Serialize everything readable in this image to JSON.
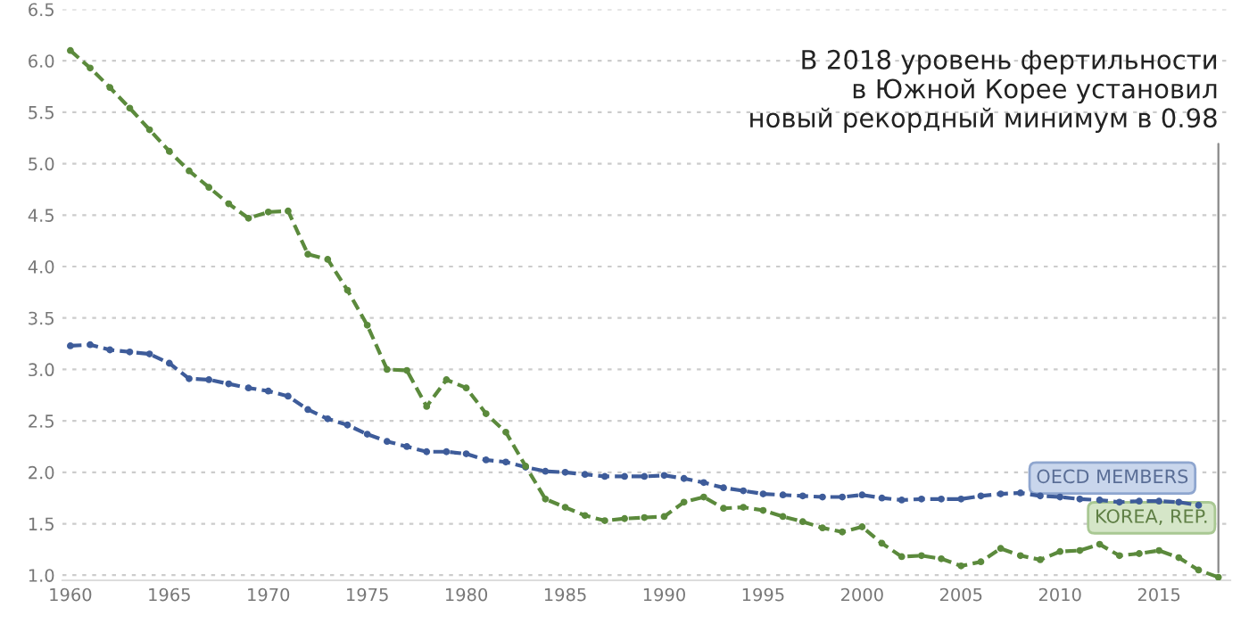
{
  "chart_data": {
    "type": "line",
    "x": [
      1960,
      1961,
      1962,
      1963,
      1964,
      1965,
      1966,
      1967,
      1968,
      1969,
      1970,
      1971,
      1972,
      1973,
      1974,
      1975,
      1976,
      1977,
      1978,
      1979,
      1980,
      1981,
      1982,
      1983,
      1984,
      1985,
      1986,
      1987,
      1988,
      1989,
      1990,
      1991,
      1992,
      1993,
      1994,
      1995,
      1996,
      1997,
      1998,
      1999,
      2000,
      2001,
      2002,
      2003,
      2004,
      2005,
      2006,
      2007,
      2008,
      2009,
      2010,
      2011,
      2012,
      2013,
      2014,
      2015,
      2016,
      2017,
      2018
    ],
    "series": [
      {
        "name": "OECD MEMBERS",
        "color": "#3e5c9a",
        "values": [
          3.23,
          3.24,
          3.19,
          3.17,
          3.15,
          3.06,
          2.91,
          2.9,
          2.86,
          2.82,
          2.79,
          2.74,
          2.61,
          2.52,
          2.46,
          2.37,
          2.3,
          2.25,
          2.2,
          2.2,
          2.18,
          2.12,
          2.1,
          2.05,
          2.01,
          2.0,
          1.98,
          1.96,
          1.96,
          1.96,
          1.97,
          1.94,
          1.9,
          1.85,
          1.82,
          1.79,
          1.78,
          1.77,
          1.76,
          1.76,
          1.78,
          1.75,
          1.73,
          1.74,
          1.74,
          1.74,
          1.77,
          1.79,
          1.8,
          1.77,
          1.76,
          1.74,
          1.73,
          1.71,
          1.72,
          1.72,
          1.71,
          1.68,
          null
        ]
      },
      {
        "name": "KOREA, REP.",
        "color": "#5b8a3c",
        "values": [
          6.1,
          5.93,
          5.74,
          5.54,
          5.33,
          5.12,
          4.93,
          4.77,
          4.61,
          4.47,
          4.53,
          4.54,
          4.12,
          4.07,
          3.77,
          3.43,
          3.0,
          2.99,
          2.64,
          2.9,
          2.82,
          2.57,
          2.39,
          2.06,
          1.74,
          1.66,
          1.58,
          1.53,
          1.55,
          1.56,
          1.57,
          1.71,
          1.76,
          1.65,
          1.66,
          1.63,
          1.57,
          1.52,
          1.46,
          1.42,
          1.47,
          1.31,
          1.18,
          1.19,
          1.16,
          1.09,
          1.13,
          1.26,
          1.19,
          1.15,
          1.23,
          1.24,
          1.3,
          1.19,
          1.21,
          1.24,
          1.17,
          1.05,
          0.98
        ]
      }
    ],
    "xlim": [
      1959.6,
      2018.6
    ],
    "xticks": [
      1960,
      1965,
      1970,
      1975,
      1980,
      1985,
      1990,
      1995,
      2000,
      2005,
      2010,
      2015
    ],
    "ylim": [
      0.95,
      6.5
    ],
    "yticks": [
      {
        "value": 1.0,
        "label": "1.0"
      },
      {
        "value": 1.5,
        "label": "1.5"
      },
      {
        "value": 2.0,
        "label": "2.0"
      },
      {
        "value": 2.5,
        "label": "2.5"
      },
      {
        "value": 3.0,
        "label": "3.0"
      },
      {
        "value": 3.5,
        "label": "3.5"
      },
      {
        "value": 4.0,
        "label": "4.0"
      },
      {
        "value": 4.5,
        "label": "4.5"
      },
      {
        "value": 5.0,
        "label": "5.0"
      },
      {
        "value": 5.5,
        "label": "5.5"
      },
      {
        "value": 6.0,
        "label": "6.0"
      },
      {
        "value": 6.5,
        "label": "6.5"
      }
    ],
    "grid": "y",
    "marker": "circle",
    "line_style": "dashed",
    "annotations": [
      {
        "text": "В 2018 уровень фертильности\nв Южной Корее установил\nновый рекордный минимум в 0.98",
        "x": 2018,
        "y": 0.98
      }
    ]
  }
}
